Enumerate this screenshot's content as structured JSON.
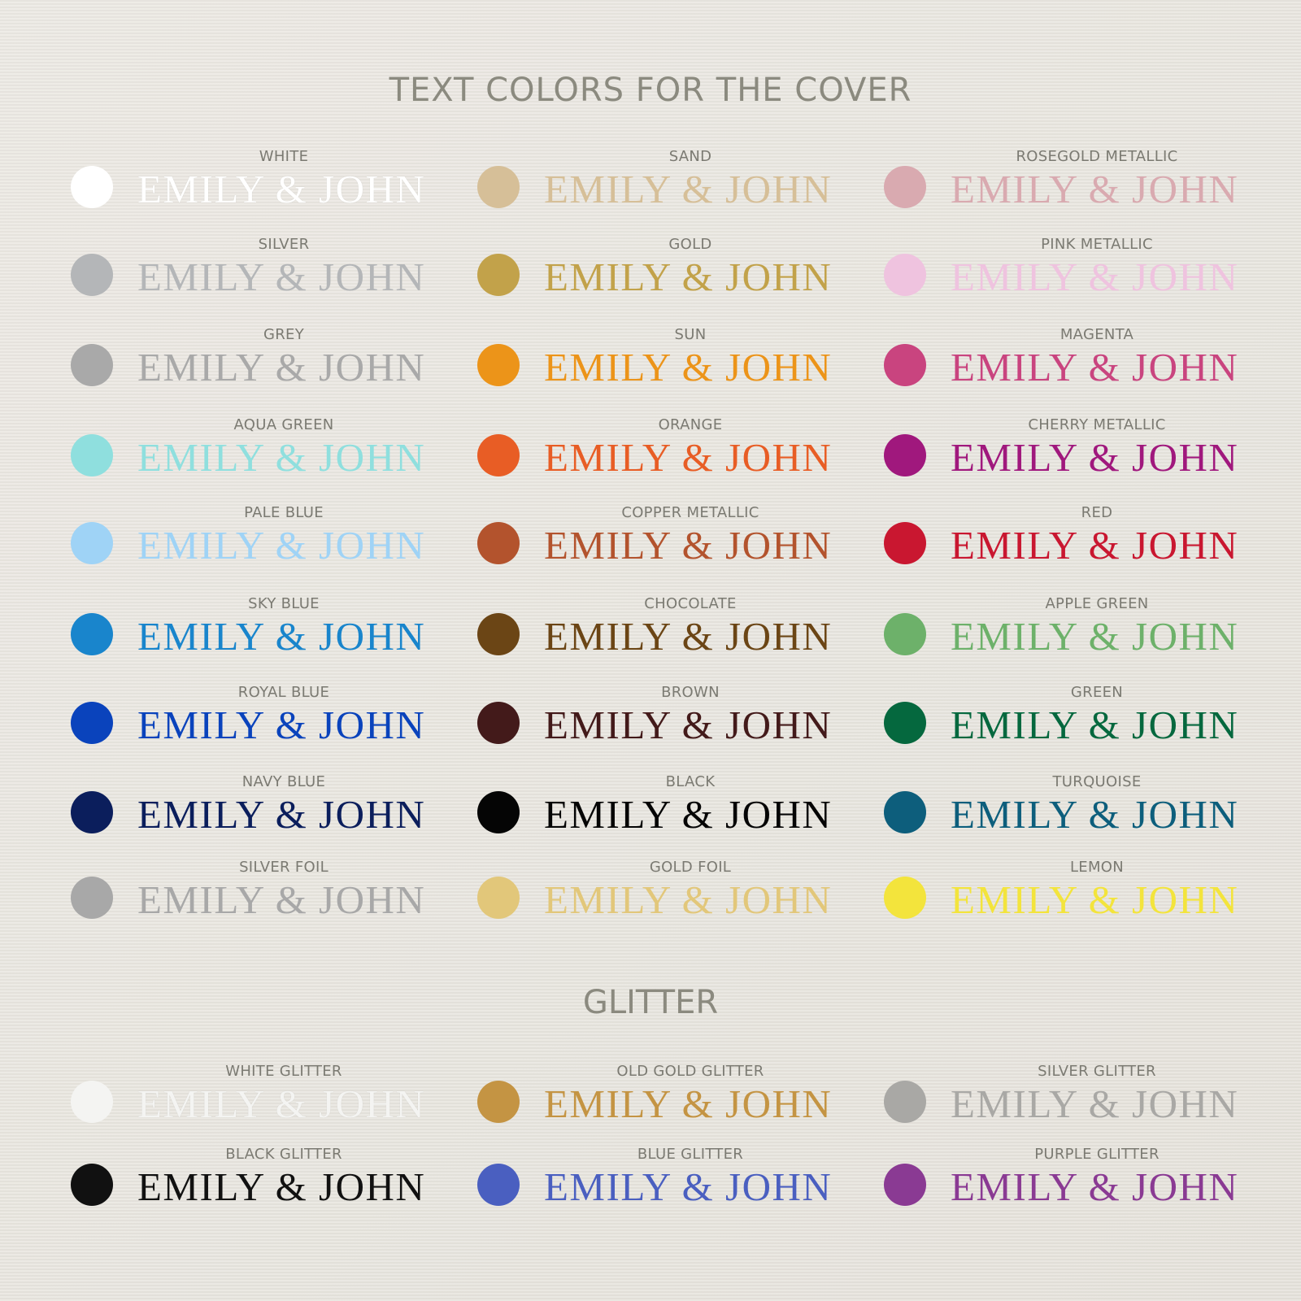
{
  "title": "TEXT COLORS FOR THE COVER",
  "sample_text": "EMILY & JOHN",
  "glitter_heading": "GLITTER",
  "colors": [
    [
      {
        "label": "WHITE",
        "color": "#ffffff"
      },
      {
        "label": "SAND",
        "color": "#d6bf98"
      },
      {
        "label": "ROSEGOLD METALLIC",
        "color": "#d9aab0"
      }
    ],
    [
      {
        "label": "SILVER",
        "color": "#b4b6b8"
      },
      {
        "label": "GOLD",
        "color": "#c2a24a"
      },
      {
        "label": "PINK METALLIC",
        "color": "#efc3df"
      }
    ],
    [
      {
        "label": "GREY",
        "color": "#a9a9a9"
      },
      {
        "label": "SUN",
        "color": "#ec9419"
      },
      {
        "label": "MAGENTA",
        "color": "#c9447f"
      }
    ],
    [
      {
        "label": "AQUA GREEN",
        "color": "#8fdfde"
      },
      {
        "label": "ORANGE",
        "color": "#e85d25"
      },
      {
        "label": "CHERRY METALLIC",
        "color": "#a0187d"
      }
    ],
    [
      {
        "label": "PALE BLUE",
        "color": "#9fd3f6"
      },
      {
        "label": "COPPER METALLIC",
        "color": "#b3532d"
      },
      {
        "label": "RED",
        "color": "#c91730"
      }
    ],
    [
      {
        "label": "SKY BLUE",
        "color": "#1985cc"
      },
      {
        "label": "CHOCOLATE",
        "color": "#6b4515"
      },
      {
        "label": "APPLE GREEN",
        "color": "#6db16a"
      }
    ],
    [
      {
        "label": "ROYAL BLUE",
        "color": "#0a43bc"
      },
      {
        "label": "BROWN",
        "color": "#431a1a"
      },
      {
        "label": "GREEN",
        "color": "#05683e"
      }
    ],
    [
      {
        "label": "NAVY BLUE",
        "color": "#0b1e5c"
      },
      {
        "label": "BLACK",
        "color": "#050505"
      },
      {
        "label": "TURQUOISE",
        "color": "#0d5e7c"
      }
    ],
    [
      {
        "label": "SILVER FOIL",
        "color": "#a8a8a8"
      },
      {
        "label": "GOLD FOIL",
        "color": "#e2c77a"
      },
      {
        "label": "LEMON",
        "color": "#f3e43c"
      }
    ]
  ],
  "glitters": [
    [
      {
        "label": "WHITE GLITTER",
        "color": "#f4f4f2"
      },
      {
        "label": "OLD GOLD GLITTER",
        "color": "#c49443"
      },
      {
        "label": "SILVER GLITTER",
        "color": "#a9a8a5"
      }
    ],
    [
      {
        "label": "BLACK GLITTER",
        "color": "#111111"
      },
      {
        "label": "BLUE GLITTER",
        "color": "#4a5fc0"
      },
      {
        "label": "PURPLE GLITTER",
        "color": "#8a3a93"
      }
    ]
  ]
}
